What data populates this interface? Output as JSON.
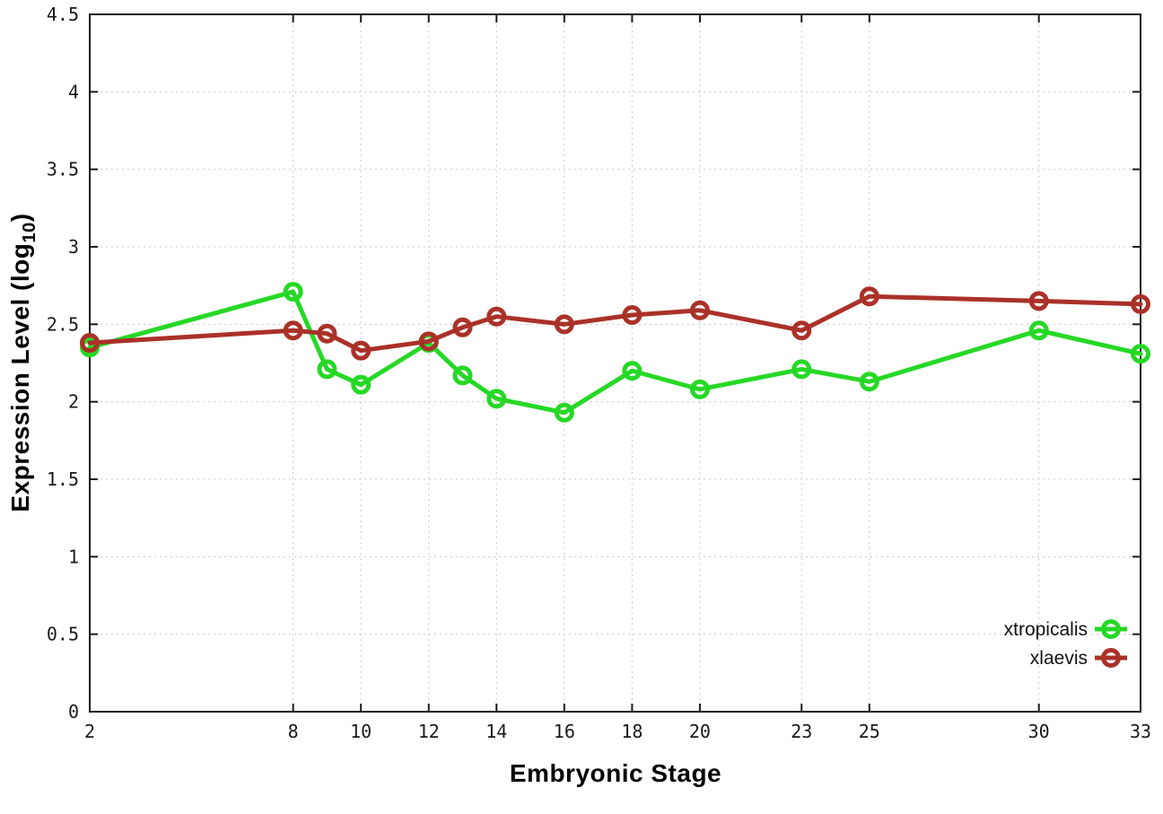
{
  "figure": {
    "background": "#ffffff",
    "border_color": "#1a1a1a",
    "grid_color": "#c9c9c9",
    "tick_label_color": "#1a1a1a",
    "legend_text_color": "#111111"
  },
  "chart_data": {
    "type": "line",
    "title": "",
    "xlabel": "Embryonic Stage",
    "ylabel": "Expression Level (log10)",
    "ylabel_parts": {
      "prefix": "Expression Level (log",
      "sub": "10",
      "suffix": ")"
    },
    "xlim": [
      2,
      33
    ],
    "ylim": [
      0,
      4.5
    ],
    "grid": true,
    "legend_position": "bottom-right",
    "x_ticks": [
      2,
      8,
      10,
      12,
      14,
      16,
      18,
      20,
      23,
      25,
      30,
      33
    ],
    "x_tick_labels": [
      "2",
      "8",
      "10",
      "12",
      "14",
      "16",
      "18",
      "20",
      "23",
      "25",
      "30",
      "33"
    ],
    "y_ticks": [
      0,
      0.5,
      1,
      1.5,
      2,
      2.5,
      3,
      3.5,
      4,
      4.5
    ],
    "y_tick_labels": [
      "0",
      "0.5",
      "1",
      "1.5",
      "2",
      "2.5",
      "3",
      "3.5",
      "4",
      "4.5"
    ],
    "x": [
      2,
      8,
      9,
      10,
      12,
      13,
      14,
      16,
      18,
      20,
      23,
      25,
      30,
      33
    ],
    "series": [
      {
        "name": "xtropicalis",
        "color": "#26d826",
        "marker": "open-circle",
        "values": [
          2.35,
          2.71,
          2.21,
          2.11,
          2.38,
          2.17,
          2.02,
          1.93,
          2.2,
          2.08,
          2.21,
          2.13,
          2.46,
          2.31
        ]
      },
      {
        "name": "xlaevis",
        "color": "#aa3128",
        "marker": "open-circle",
        "values": [
          2.38,
          2.46,
          2.44,
          2.33,
          2.39,
          2.48,
          2.55,
          2.5,
          2.56,
          2.59,
          2.46,
          2.68,
          2.65,
          2.63
        ]
      }
    ]
  }
}
